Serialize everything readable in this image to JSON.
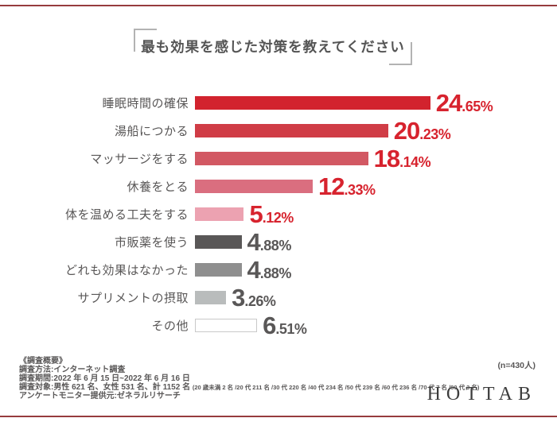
{
  "page": {
    "n_label": "(n=430人)",
    "logo_text": "HOTTAB",
    "frame_color": "#963c3e"
  },
  "chart_data": {
    "type": "bar",
    "orientation": "horizontal",
    "title": "最も効果を感じた対策を教えてください",
    "categories": [
      "睡眠時間の確保",
      "湯船につかる",
      "マッサージをする",
      "休養をとる",
      "体を温める工夫をする",
      "市販薬を使う",
      "どれも効果はなかった",
      "サプリメントの摂取",
      "その他"
    ],
    "values": [
      24.65,
      20.23,
      18.14,
      12.33,
      5.12,
      4.88,
      4.88,
      3.26,
      6.51
    ],
    "unit": "%",
    "xlim": [
      0,
      25
    ],
    "grid": false,
    "bar_colors": [
      "#d2232e",
      "#d03c46",
      "#d25863",
      "#da6e7f",
      "#eca2b1",
      "#595757",
      "#8f8f8f",
      "#b9bcbc",
      "#ffffff"
    ],
    "bar_border_colors": [
      null,
      null,
      null,
      null,
      null,
      null,
      null,
      null,
      "#c9c9c9"
    ],
    "value_label_colors": [
      "#d7232e",
      "#d7232e",
      "#d7232e",
      "#d7232e",
      "#d7232e",
      "#595757",
      "#595757",
      "#595757",
      "#595757"
    ]
  },
  "footer": {
    "heading": "《調査概要》",
    "method": "調査方法:インターネット調査",
    "period": "調査期間:2022 年 6 月 15 日~2022 年 6 月 16 日",
    "target": "調査対象:男性 621 名、女性 531 名、計 1152 名 ",
    "target_detail": "(20 歳未満 2 名 /20 代 211 名 /30 代 220 名 /40 代 234 名 /50 代 239 名 /60 代 236 名 /70 代 7 名 /80 代 3 名)",
    "provider": "アンケートモニター提供元:ゼネラルリサーチ"
  }
}
